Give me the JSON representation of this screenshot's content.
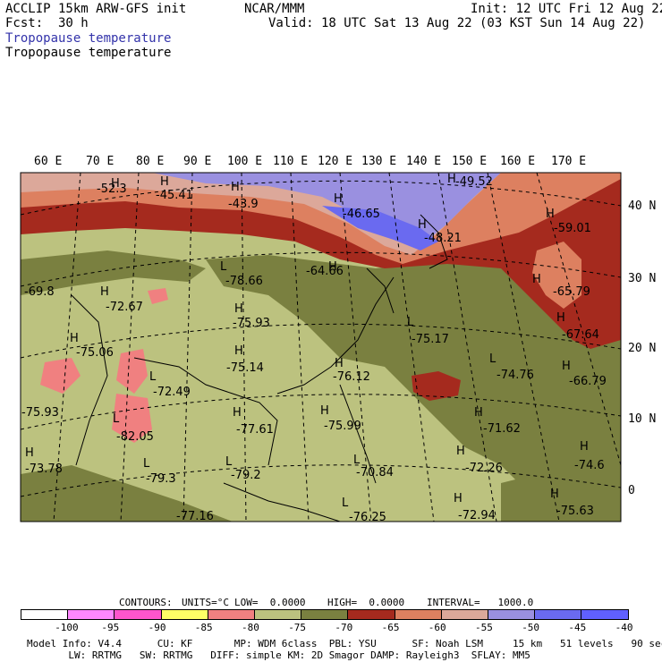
{
  "header": {
    "model_line": "ACCLIP 15km ARW-GFS init",
    "fcst_line": "Fcst:  30 h",
    "center_line": "NCAR/MMM",
    "init_line": "Init: 12 UTC Fri 12 Aug 22",
    "valid_line": "Valid: 18 UTC Sat 13 Aug 22 (03 KST Sun 14 Aug 22)",
    "field_title_1": "Tropopause temperature",
    "field_title_2": "Tropopause temperature"
  },
  "axes": {
    "lon_labels": [
      "60 E",
      "70 E",
      "80 E",
      "90 E",
      "100 E",
      "110 E",
      "120 E",
      "130 E",
      "140 E",
      "150 E",
      "160 E",
      "170 E"
    ],
    "lat_labels": [
      "40 N",
      "30 N",
      "20 N",
      "10 N",
      "0"
    ]
  },
  "map_annotations": [
    {
      "type": "H",
      "text": "H"
    },
    {
      "type": "val",
      "text": "-52.3"
    },
    {
      "type": "H",
      "text": "H"
    },
    {
      "type": "val",
      "text": "-45.41"
    },
    {
      "type": "H",
      "text": "H"
    },
    {
      "type": "val",
      "text": "-43.9"
    },
    {
      "type": "H",
      "text": "H"
    },
    {
      "type": "val",
      "text": "-46.65"
    },
    {
      "type": "H",
      "text": "H"
    },
    {
      "type": "val",
      "text": "-49.52"
    },
    {
      "type": "H",
      "text": "H"
    },
    {
      "type": "val",
      "text": "-48.21"
    },
    {
      "type": "H",
      "text": "H"
    },
    {
      "type": "val",
      "text": "-59.01"
    },
    {
      "type": "H",
      "text": "H"
    },
    {
      "type": "val",
      "text": "-64.66"
    },
    {
      "type": "L",
      "text": "L"
    },
    {
      "type": "val",
      "text": "-78.66"
    },
    {
      "type": "val",
      "text": "-69.8"
    },
    {
      "type": "H",
      "text": "H"
    },
    {
      "type": "val",
      "text": "-72.67"
    },
    {
      "type": "H",
      "text": "H"
    },
    {
      "type": "val",
      "text": "-75.93"
    },
    {
      "type": "H",
      "text": "H"
    },
    {
      "type": "val",
      "text": "-65.79"
    },
    {
      "type": "H",
      "text": "H"
    },
    {
      "type": "val",
      "text": "-67.64"
    },
    {
      "type": "L",
      "text": "L"
    },
    {
      "type": "val",
      "text": "-75.17"
    },
    {
      "type": "H",
      "text": "H"
    },
    {
      "type": "val",
      "text": "-75.06"
    },
    {
      "type": "H",
      "text": "H"
    },
    {
      "type": "val",
      "text": "-75.14"
    },
    {
      "type": "H",
      "text": "H"
    },
    {
      "type": "val",
      "text": "-76.12"
    },
    {
      "type": "L",
      "text": "L"
    },
    {
      "type": "val",
      "text": "-74.76"
    },
    {
      "type": "H",
      "text": "H"
    },
    {
      "type": "val",
      "text": "-66.79"
    },
    {
      "type": "L",
      "text": "L"
    },
    {
      "type": "val",
      "text": "-72.49"
    },
    {
      "type": "val",
      "text": "-75.93"
    },
    {
      "type": "L",
      "text": "L"
    },
    {
      "type": "val",
      "text": "-82.05"
    },
    {
      "type": "H",
      "text": "H"
    },
    {
      "type": "val",
      "text": "-77.61"
    },
    {
      "type": "H",
      "text": "H"
    },
    {
      "type": "val",
      "text": "-75.99"
    },
    {
      "type": "H",
      "text": "H"
    },
    {
      "type": "val",
      "text": "-71.62"
    },
    {
      "type": "H",
      "text": "H"
    },
    {
      "type": "val",
      "text": "-74.6"
    },
    {
      "type": "H",
      "text": "H"
    },
    {
      "type": "val",
      "text": "-73.78"
    },
    {
      "type": "L",
      "text": "L"
    },
    {
      "type": "val",
      "text": "-79.3"
    },
    {
      "type": "L",
      "text": "L"
    },
    {
      "type": "val",
      "text": "-79.2"
    },
    {
      "type": "L",
      "text": "L"
    },
    {
      "type": "val",
      "text": "-70.84"
    },
    {
      "type": "H",
      "text": "H"
    },
    {
      "type": "val",
      "text": "-72.26"
    },
    {
      "type": "H",
      "text": "H"
    },
    {
      "type": "val",
      "text": "-75.63"
    },
    {
      "type": "val",
      "text": "-77.16"
    },
    {
      "type": "L",
      "text": "L"
    },
    {
      "type": "val",
      "text": "-76.25"
    },
    {
      "type": "H",
      "text": "H"
    },
    {
      "type": "val",
      "text": "-72.94"
    }
  ],
  "contours_line": {
    "label": "CONTOURS:",
    "units": "UNITS=°C",
    "low": "LOW=  0.0000",
    "high": "HIGH=  0.0000",
    "interval": "INTERVAL=   1000.0"
  },
  "colorbar": {
    "ticks": [
      "-100",
      "-95",
      "-90",
      "-85",
      "-80",
      "-75",
      "-70",
      "-65",
      "-60",
      "-55",
      "-50",
      "-45",
      "-40",
      "°C"
    ],
    "colors": [
      "#ffffff",
      "#ff88ff",
      "#ff55cc",
      "#ffff66",
      "#f08080",
      "#bcc27f",
      "#7a8040",
      "#a52a1e",
      "#dd8060",
      "#dca89a",
      "#9a90e0",
      "#6a6af0",
      "#6060ff"
    ]
  },
  "footer": {
    "line1": "Model Info: V4.4      CU: KF       MP: WDM 6class  PBL: YSU      SF: Noah LSM     15 km   51 levels   90 sec",
    "line2": "       LW: RRTMG   SW: RRTMG   DIFF: simple KM: 2D Smagor DAMP: Rayleigh3  SFLAY: MM5"
  },
  "colors": {
    "purple_high": "#9a90e0",
    "blue": "#6a6af0",
    "red": "#a52a1e",
    "orange": "#dd8060",
    "olive_dark": "#7a8040",
    "olive_light": "#bcc27f",
    "pink": "#f08080"
  }
}
